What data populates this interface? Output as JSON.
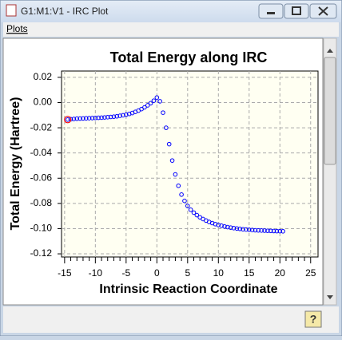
{
  "window": {
    "title": "G1:M1:V1 - IRC Plot",
    "help_button": "?"
  },
  "menu": [
    "Plots"
  ],
  "chart_data": {
    "type": "scatter",
    "title": "Total Energy along IRC",
    "x_label": "Intrinsic Reaction Coordinate",
    "y_label": "Total Energy (Hartree)",
    "x": [
      -14.5,
      -14,
      -13.5,
      -13,
      -12.5,
      -12,
      -11.5,
      -11,
      -10.5,
      -10,
      -9.5,
      -9,
      -8.5,
      -8,
      -7.5,
      -7,
      -6.5,
      -6,
      -5.5,
      -5,
      -4.5,
      -4,
      -3.5,
      -3,
      -2.5,
      -2,
      -1.5,
      -1,
      -0.5,
      0,
      0.5,
      1,
      1.5,
      2,
      2.5,
      3,
      3.5,
      4,
      4.5,
      5,
      5.5,
      6,
      6.5,
      7,
      7.5,
      8,
      8.5,
      9,
      9.5,
      10,
      10.5,
      11,
      11.5,
      12,
      12.5,
      13,
      13.5,
      14,
      14.5,
      15,
      15.5,
      16,
      16.5,
      17,
      17.5,
      18,
      18.5,
      19,
      19.5,
      20,
      20.5
    ],
    "values": [
      -0.0135,
      -0.0132,
      -0.013,
      -0.0128,
      -0.0127,
      -0.0126,
      -0.0125,
      -0.0124,
      -0.0123,
      -0.0122,
      -0.0121,
      -0.012,
      -0.0118,
      -0.0116,
      -0.0114,
      -0.0112,
      -0.0109,
      -0.0105,
      -0.0101,
      -0.0096,
      -0.009,
      -0.0083,
      -0.0074,
      -0.0064,
      -0.0052,
      -0.0038,
      -0.0022,
      -0.0005,
      0.0015,
      0.004,
      0.001,
      -0.008,
      -0.02,
      -0.033,
      -0.046,
      -0.057,
      -0.066,
      -0.073,
      -0.078,
      -0.082,
      -0.085,
      -0.0873,
      -0.0893,
      -0.091,
      -0.0924,
      -0.0936,
      -0.0947,
      -0.0956,
      -0.0964,
      -0.0971,
      -0.0977,
      -0.0983,
      -0.0988,
      -0.0992,
      -0.0996,
      -0.0999,
      -0.1002,
      -0.1005,
      -0.1007,
      -0.1009,
      -0.1011,
      -0.1013,
      -0.1014,
      -0.1015,
      -0.1016,
      -0.1017,
      -0.1018,
      -0.1019,
      -0.102,
      -0.102,
      -0.1021
    ],
    "color": "#0000ff",
    "highlight": {
      "index": 0,
      "color": "#ff0000"
    },
    "xlim": [
      -15.5,
      26.2
    ],
    "ylim": [
      -0.1225,
      0.025
    ],
    "xticks": [
      -15,
      -10,
      -5,
      0,
      5,
      10,
      15,
      20,
      25
    ],
    "x_minor_per_major": 5,
    "yticks": [
      0.02,
      {
        "value": 0,
        "label": "0.00"
      },
      -0.02,
      -0.04,
      -0.06,
      -0.08,
      {
        "value": -0.1,
        "label": "-0.10"
      },
      -0.12
    ],
    "grid": true
  }
}
